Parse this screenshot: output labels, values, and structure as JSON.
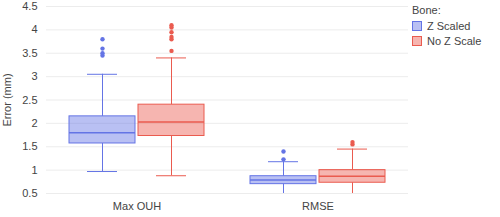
{
  "chart_data": {
    "type": "box",
    "y_label": "Error (mm)",
    "legend_title": "Bone:",
    "legend": "top-right",
    "grid": true,
    "categories": [
      "Max OUH",
      "RMSE"
    ],
    "ylim": [
      0.5,
      4.5
    ],
    "yticks": [
      0.5,
      1,
      1.5,
      2,
      2.5,
      3,
      3.5,
      4,
      4.5
    ],
    "series": [
      {
        "name": "Z Scaled",
        "color": "#6474e5",
        "whisker_low": [
          0.97,
          0.5
        ],
        "q1": [
          1.57,
          0.7
        ],
        "median": [
          1.8,
          0.79
        ],
        "q3": [
          2.15,
          0.87
        ],
        "whisker_high": [
          3.05,
          1.18
        ],
        "outliers": [
          [
            3.45,
            3.5,
            3.6,
            3.8
          ],
          [
            1.23,
            1.4
          ]
        ]
      },
      {
        "name": "No Z Scale",
        "color": "#ea5b4f",
        "whisker_low": [
          0.88,
          0.5
        ],
        "q1": [
          1.73,
          0.73
        ],
        "median": [
          2.03,
          0.87
        ],
        "q3": [
          2.4,
          1.0
        ],
        "whisker_high": [
          3.4,
          1.45
        ],
        "outliers": [
          [
            3.55,
            3.8,
            3.85,
            3.95,
            4.05,
            4.1
          ],
          [
            1.55,
            1.6
          ]
        ]
      }
    ]
  }
}
